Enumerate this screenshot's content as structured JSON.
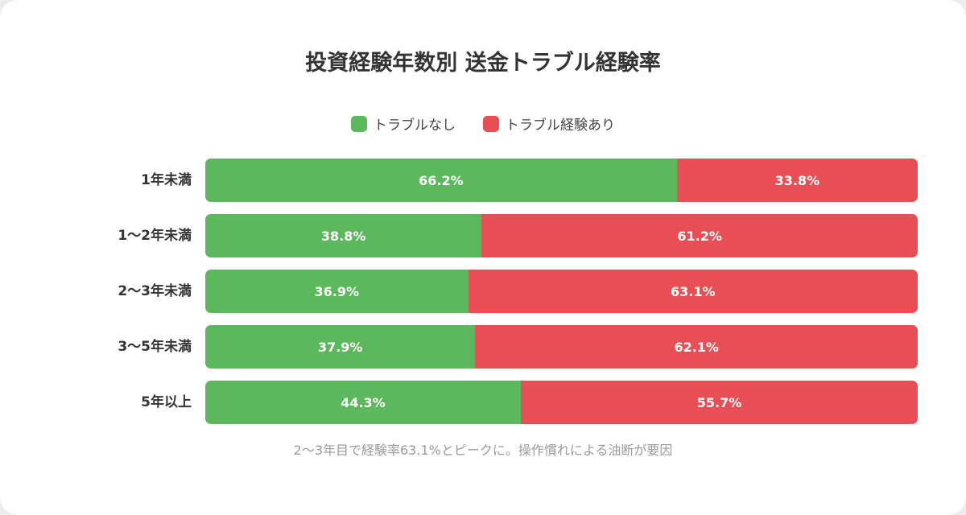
{
  "chart_data": {
    "type": "bar",
    "orientation": "horizontal",
    "stacked": true,
    "title": "投資経験年数別 送金トラブル経験率",
    "categories": [
      "1年未満",
      "1〜2年未満",
      "2〜3年未満",
      "3〜5年未満",
      "5年以上"
    ],
    "series": [
      {
        "name": "トラブルなし",
        "color": "#5cb85c",
        "values": [
          66.2,
          38.8,
          36.9,
          37.9,
          44.3
        ]
      },
      {
        "name": "トラブル経験あり",
        "color": "#e84f55",
        "values": [
          33.8,
          61.2,
          63.1,
          62.1,
          55.7
        ]
      }
    ],
    "value_suffix": "%",
    "xlim": [
      0,
      100
    ],
    "legend_position": "top",
    "grid": false,
    "caption": "2〜3年目で経験率63.1%とピークに。操作慣れによる油断が要因"
  }
}
